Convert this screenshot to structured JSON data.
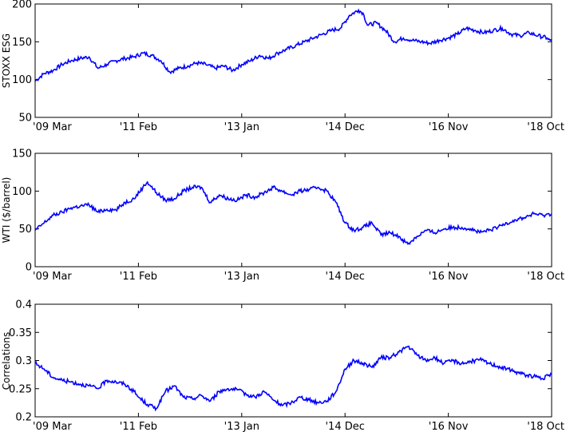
{
  "figure": {
    "x_ticks": [
      "'09 Mar",
      "'11 Feb",
      "'13 Jan",
      "'14 Dec",
      "'16 Nov",
      "'18 Oct"
    ]
  },
  "chart_data": [
    {
      "type": "line",
      "title": "",
      "xlabel": "",
      "ylabel": "STOXX ESG",
      "ylim": [
        50,
        200
      ],
      "yticks": [
        50,
        100,
        150,
        200
      ],
      "xlim": [
        "2009-03",
        "2018-10"
      ],
      "xticks": [
        "'09 Mar",
        "'11 Feb",
        "'13 Jan",
        "'14 Dec",
        "'16 Nov",
        "'18 Oct"
      ],
      "grid": false,
      "line_color": "#0000ff",
      "series": [
        {
          "x": [
            "2009-03",
            "2009-05",
            "2009-07",
            "2009-09",
            "2009-11",
            "2010-01",
            "2010-03",
            "2010-05",
            "2010-07",
            "2010-09",
            "2010-11",
            "2011-01",
            "2011-03",
            "2011-05",
            "2011-07",
            "2011-09",
            "2011-11",
            "2012-01",
            "2012-03",
            "2012-05",
            "2012-07",
            "2012-09",
            "2012-11",
            "2013-01",
            "2013-03",
            "2013-05",
            "2013-07",
            "2013-09",
            "2013-11",
            "2014-01",
            "2014-03",
            "2014-05",
            "2014-07",
            "2014-09",
            "2014-11",
            "2015-01",
            "2015-03",
            "2015-04",
            "2015-05",
            "2015-07",
            "2015-09",
            "2015-11",
            "2016-01",
            "2016-03",
            "2016-05",
            "2016-07",
            "2016-09",
            "2016-11",
            "2017-01",
            "2017-03",
            "2017-05",
            "2017-07",
            "2017-09",
            "2017-11",
            "2018-01",
            "2018-03",
            "2018-05",
            "2018-07",
            "2018-09",
            "2018-10"
          ],
          "y": [
            98,
            108,
            112,
            120,
            125,
            128,
            130,
            115,
            120,
            125,
            128,
            130,
            135,
            132,
            125,
            110,
            115,
            118,
            122,
            120,
            115,
            118,
            112,
            120,
            125,
            132,
            128,
            135,
            140,
            145,
            150,
            155,
            160,
            165,
            168,
            185,
            192,
            188,
            172,
            175,
            165,
            150,
            155,
            152,
            150,
            148,
            152,
            155,
            160,
            168,
            165,
            162,
            165,
            168,
            160,
            158,
            162,
            158,
            155,
            150
          ]
        }
      ]
    },
    {
      "type": "line",
      "title": "",
      "xlabel": "",
      "ylabel": "WTI ($/barrel)",
      "ylim": [
        0,
        150
      ],
      "yticks": [
        0,
        50,
        100,
        150
      ],
      "xlim": [
        "2009-03",
        "2018-10"
      ],
      "xticks": [
        "'09 Mar",
        "'11 Feb",
        "'13 Jan",
        "'14 Dec",
        "'16 Nov",
        "'18 Oct"
      ],
      "grid": false,
      "line_color": "#0000ff",
      "series": [
        {
          "x": [
            "2009-03",
            "2009-05",
            "2009-07",
            "2009-09",
            "2009-11",
            "2010-01",
            "2010-03",
            "2010-05",
            "2010-07",
            "2010-09",
            "2010-11",
            "2011-01",
            "2011-03",
            "2011-04",
            "2011-06",
            "2011-08",
            "2011-10",
            "2011-12",
            "2012-02",
            "2012-04",
            "2012-06",
            "2012-08",
            "2012-10",
            "2012-12",
            "2013-02",
            "2013-04",
            "2013-06",
            "2013-08",
            "2013-10",
            "2013-12",
            "2014-02",
            "2014-04",
            "2014-06",
            "2014-08",
            "2014-10",
            "2014-12",
            "2015-02",
            "2015-04",
            "2015-06",
            "2015-08",
            "2015-10",
            "2015-12",
            "2016-02",
            "2016-04",
            "2016-06",
            "2016-08",
            "2016-10",
            "2016-12",
            "2017-02",
            "2017-04",
            "2017-06",
            "2017-08",
            "2017-10",
            "2017-12",
            "2018-02",
            "2018-04",
            "2018-06",
            "2018-08",
            "2018-10"
          ],
          "y": [
            48,
            58,
            68,
            72,
            78,
            80,
            82,
            72,
            76,
            75,
            85,
            90,
            105,
            112,
            98,
            88,
            90,
            100,
            105,
            105,
            85,
            95,
            90,
            88,
            95,
            92,
            98,
            105,
            100,
            95,
            100,
            102,
            105,
            100,
            85,
            58,
            48,
            52,
            58,
            42,
            45,
            40,
            30,
            40,
            48,
            45,
            50,
            52,
            52,
            50,
            45,
            48,
            52,
            58,
            62,
            65,
            70,
            68,
            70
          ]
        }
      ]
    },
    {
      "type": "line",
      "title": "",
      "xlabel": "",
      "ylabel": "Correlations",
      "ylim": [
        0.2,
        0.4
      ],
      "yticks": [
        0.2,
        0.25,
        0.3,
        0.35,
        0.4
      ],
      "xlim": [
        "2009-03",
        "2018-10"
      ],
      "xticks": [
        "'09 Mar",
        "'11 Feb",
        "'13 Jan",
        "'14 Dec",
        "'16 Nov",
        "'18 Oct"
      ],
      "grid": false,
      "line_color": "#0000ff",
      "series": [
        {
          "x": [
            "2009-03",
            "2009-05",
            "2009-07",
            "2009-09",
            "2009-11",
            "2010-01",
            "2010-03",
            "2010-05",
            "2010-07",
            "2010-09",
            "2010-11",
            "2011-01",
            "2011-02",
            "2011-04",
            "2011-06",
            "2011-08",
            "2011-10",
            "2011-12",
            "2012-02",
            "2012-04",
            "2012-06",
            "2012-08",
            "2012-10",
            "2012-12",
            "2013-02",
            "2013-04",
            "2013-06",
            "2013-08",
            "2013-10",
            "2013-12",
            "2014-02",
            "2014-04",
            "2014-06",
            "2014-08",
            "2014-10",
            "2014-12",
            "2015-02",
            "2015-04",
            "2015-06",
            "2015-08",
            "2015-10",
            "2015-12",
            "2016-02",
            "2016-04",
            "2016-06",
            "2016-08",
            "2016-10",
            "2016-12",
            "2017-02",
            "2017-04",
            "2017-06",
            "2017-08",
            "2017-10",
            "2017-12",
            "2018-02",
            "2018-04",
            "2018-06",
            "2018-08",
            "2018-10"
          ],
          "y": [
            0.295,
            0.285,
            0.27,
            0.265,
            0.262,
            0.258,
            0.255,
            0.25,
            0.265,
            0.262,
            0.258,
            0.245,
            0.235,
            0.222,
            0.215,
            0.245,
            0.255,
            0.235,
            0.232,
            0.238,
            0.228,
            0.245,
            0.25,
            0.248,
            0.24,
            0.235,
            0.245,
            0.23,
            0.22,
            0.225,
            0.235,
            0.23,
            0.225,
            0.228,
            0.245,
            0.285,
            0.3,
            0.295,
            0.288,
            0.305,
            0.305,
            0.315,
            0.325,
            0.31,
            0.3,
            0.305,
            0.295,
            0.3,
            0.295,
            0.298,
            0.302,
            0.295,
            0.29,
            0.285,
            0.28,
            0.275,
            0.272,
            0.268,
            0.275
          ]
        }
      ]
    }
  ]
}
